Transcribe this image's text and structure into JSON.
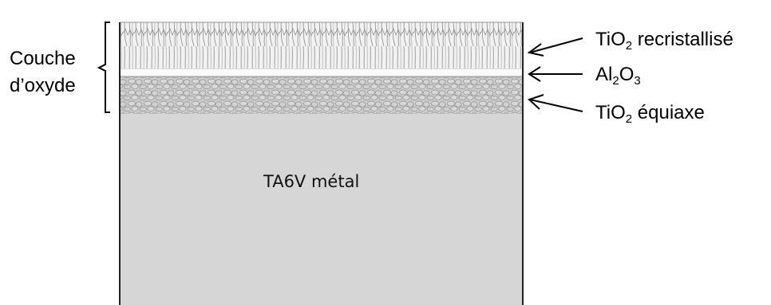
{
  "oxide_label": {
    "line1": "Couche",
    "line2": "d’oxyde"
  },
  "metal_label": "TA6V métal",
  "layers": [
    {
      "id": "tio2-recrist",
      "main": "TiO",
      "sub1": "2",
      "tail": " recristallisé"
    },
    {
      "id": "al2o3",
      "main": "Al",
      "sub1": "2",
      "mid": "O",
      "sub2": "3"
    },
    {
      "id": "tio2-equi",
      "main": "TiO",
      "sub1": "2",
      "tail": " équiaxe"
    }
  ],
  "colors": {
    "metal": "#d6d6d6",
    "recrist_bg": "#f2f2f2",
    "equiaxe_bg": "#cbcbcb",
    "al2o3_band": "#fafafa",
    "outline": "#222222"
  }
}
